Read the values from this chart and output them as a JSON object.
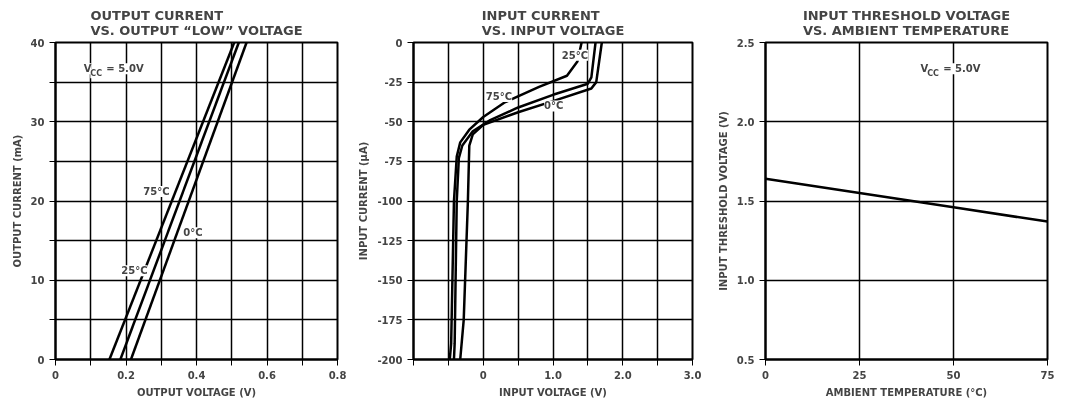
{
  "chart_data": [
    {
      "type": "line",
      "title": "OUTPUT CURRENT\nVS. OUTPUT “LOW” VOLTAGE",
      "xlabel": "OUTPUT VOLTAGE (V)",
      "ylabel": "OUTPUT CURRENT (mA)",
      "annotations": [
        "V$_{CC}$ = 5.0V"
      ],
      "series": [
        {
          "name": "75°C",
          "color": "#000000",
          "x": [
            0.153,
            0.507
          ],
          "values": [
            0,
            40
          ]
        },
        {
          "name": "25°C",
          "color": "#000000",
          "x": [
            0.184,
            0.52
          ],
          "values": [
            0,
            40
          ]
        },
        {
          "name": "0°C",
          "color": "#000000",
          "x": [
            0.214,
            0.542
          ],
          "values": [
            0,
            40
          ]
        }
      ],
      "xlim": [
        0,
        0.8
      ],
      "ylim": [
        0,
        40
      ],
      "xticks": [
        0,
        {
          "value": 0.1,
          "label": null
        },
        0.2,
        {
          "value": 0.3,
          "label": null
        },
        0.4,
        {
          "value": 0.5,
          "label": null
        },
        0.6,
        {
          "value": 0.7,
          "label": null
        },
        0.8
      ],
      "yticks": [
        0,
        {
          "value": 5,
          "label": null
        },
        10,
        {
          "value": 15,
          "label": null
        },
        20,
        {
          "value": 25,
          "label": null
        },
        30,
        {
          "value": 35,
          "label": null
        },
        40
      ],
      "grid": true,
      "legend": false,
      "marker": "none",
      "line_style": "solid"
    },
    {
      "type": "line",
      "title": "INPUT CURRENT\nVS. INPUT VOLTAGE",
      "xlabel": "INPUT VOLTAGE (V)",
      "ylabel": "INPUT CURRENT (μA)",
      "series": [
        {
          "name": "75°C",
          "color": "#000000",
          "x": [
            1.41,
            1.35,
            1.2,
            0.8,
            0.3,
            0,
            -0.2,
            -0.33,
            -0.38,
            -0.42,
            -0.46,
            -0.48
          ],
          "values": [
            0,
            -12,
            -21,
            -28,
            -38,
            -47,
            -55,
            -63,
            -72,
            -100,
            -190,
            -200
          ]
        },
        {
          "name": "25°C",
          "color": "#000000",
          "x": [
            1.61,
            1.55,
            1.5,
            1.0,
            0.5,
            0.1,
            -0.15,
            -0.3,
            -0.35,
            -0.38,
            -0.41,
            -0.42
          ],
          "values": [
            0,
            -22,
            -26,
            -33,
            -41,
            -49,
            -56,
            -65,
            -73,
            -100,
            -190,
            -200
          ]
        },
        {
          "name": "0°C",
          "color": "#000000",
          "x": [
            1.7,
            1.62,
            1.55,
            1.0,
            0.5,
            0,
            -0.15,
            -0.2,
            -0.22,
            -0.28,
            -0.33
          ],
          "values": [
            0,
            -25,
            -29,
            -37,
            -44,
            -52,
            -58,
            -65,
            -100,
            -175,
            -200
          ]
        }
      ],
      "xlim": [
        -1,
        3
      ],
      "ylim": [
        -200,
        0
      ],
      "xticks": [
        {
          "value": -1,
          "label": null
        },
        {
          "value": -0.5,
          "label": null
        },
        0,
        {
          "value": 0.5,
          "label": null
        },
        {
          "value": 1,
          "label": "1.0"
        },
        {
          "value": 1.5,
          "label": null
        },
        {
          "value": 2,
          "label": "2.0"
        },
        {
          "value": 2.5,
          "label": null
        },
        {
          "value": 3,
          "label": "3.0"
        }
      ],
      "yticks": [
        -200,
        -175,
        -150,
        -125,
        -100,
        -75,
        -50,
        -25,
        0
      ],
      "grid": true,
      "legend": false,
      "marker": "none",
      "line_style": "solid"
    },
    {
      "type": "line",
      "title": "INPUT THRESHOLD VOLTAGE\nVS. AMBIENT TEMPERATURE",
      "xlabel": "AMBIENT TEMPERATURE (°C)",
      "ylabel": "INPUT THRESHOLD VOLTAGE (V)",
      "annotations": [
        "V$_{CC}$ = 5.0V"
      ],
      "series": [
        {
          "color": "#000000",
          "x": [
            0,
            25,
            50,
            75
          ],
          "values": [
            1.64,
            1.55,
            1.46,
            1.37
          ]
        }
      ],
      "xlim": [
        0,
        75
      ],
      "ylim": [
        0.5,
        2.5
      ],
      "xticks": [
        0,
        25,
        50,
        75
      ],
      "yticks": [
        0.5,
        {
          "value": 1,
          "label": "1.0"
        },
        1.5,
        {
          "value": 2,
          "label": "2.0"
        },
        2.5
      ],
      "grid": true,
      "legend": false,
      "marker": "none",
      "line_style": "solid"
    }
  ]
}
